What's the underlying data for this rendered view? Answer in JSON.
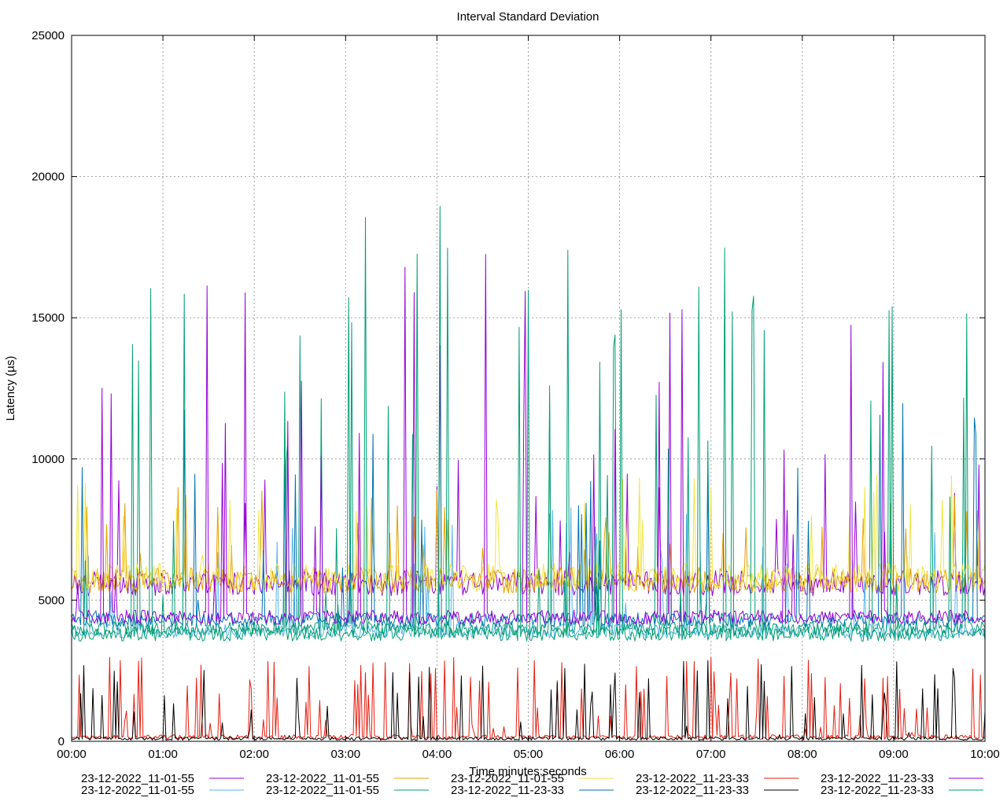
{
  "chart_data": {
    "type": "line",
    "title": "Interval Standard Deviation",
    "xlabel": "Time minutes:seconds",
    "ylabel": "Latency (µs)",
    "xlim": [
      0,
      600
    ],
    "ylim": [
      0,
      25000
    ],
    "x_ticks": [
      "00:00",
      "01:00",
      "02:00",
      "03:00",
      "04:00",
      "05:00",
      "06:00",
      "07:00",
      "08:00",
      "09:00",
      "10:00"
    ],
    "y_ticks": [
      "0",
      "5000",
      "10000",
      "15000",
      "20000",
      "25000"
    ],
    "grid": true,
    "legend_position": "bottom",
    "series": [
      {
        "name": "23-12-2022_11-01-55",
        "color": "#9400d3",
        "baseline": 5600,
        "noise": 450,
        "peak": 10500,
        "spike_seed": 3
      },
      {
        "name": "23-12-2022_11-01-55",
        "color": "#56b4e9",
        "baseline": 3900,
        "noise": 250,
        "peak": 8500,
        "spike_seed": 5
      },
      {
        "name": "23-12-2022_11-01-55",
        "color": "#e69f00",
        "baseline": 5700,
        "noise": 450,
        "peak": 9000,
        "spike_seed": 7
      },
      {
        "name": "23-12-2022_11-01-55",
        "color": "#009e73",
        "baseline": 4000,
        "noise": 250,
        "peak": 16000,
        "spike_seed": 11
      },
      {
        "name": "23-12-2022_11-01-55",
        "color": "#f0e442",
        "baseline": 5800,
        "noise": 500,
        "peak": 9500,
        "spike_seed": 13
      },
      {
        "name": "23-12-2022_11-23-33",
        "color": "#0072b2",
        "baseline": 4300,
        "noise": 250,
        "peak": 12000,
        "spike_seed": 17
      },
      {
        "name": "23-12-2022_11-23-33",
        "color": "#e51e10",
        "baseline": 150,
        "noise": 80,
        "peak": 3000,
        "spike_seed": 19
      },
      {
        "name": "23-12-2022_11-23-33",
        "color": "#000000",
        "baseline": 100,
        "noise": 60,
        "peak": 2800,
        "spike_seed": 23
      },
      {
        "name": "23-12-2022_11-23-33",
        "color": "#9400d3",
        "baseline": 4400,
        "noise": 250,
        "peak": 17500,
        "spike_seed": 29
      },
      {
        "name": "23-12-2022_11-23-33",
        "color": "#009e73",
        "baseline": 3800,
        "noise": 250,
        "peak": 20100,
        "spike_seed": 31
      }
    ]
  }
}
